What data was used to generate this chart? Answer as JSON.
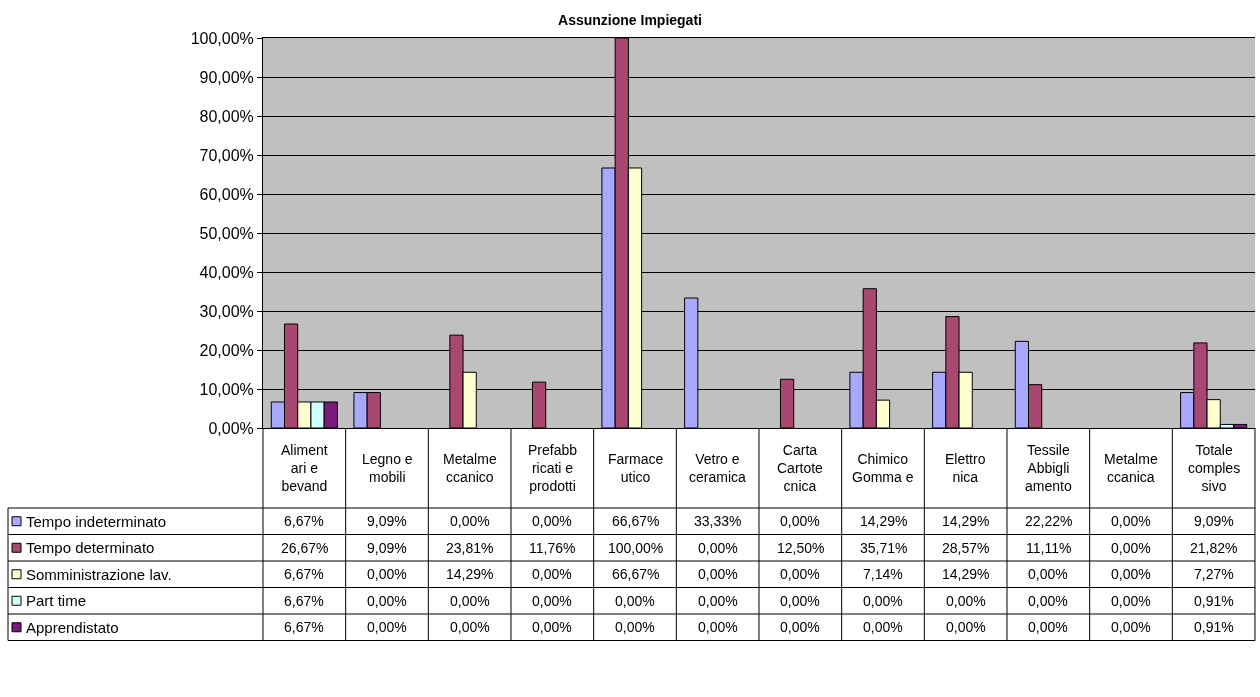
{
  "chart_data": {
    "type": "bar",
    "title": "Assunzione Impiegati",
    "categories": [
      "Alimentari e bevand",
      "Legno e mobili",
      "Metalmeccanico",
      "Prefabbricati e prodotti",
      "Farmaceutico",
      "Vetro e ceramica",
      "Carta Cartotecnica",
      "Chimico Gomma e",
      "Elettronica",
      "Tessile Abbigliamento",
      "Metalmeccanica",
      "Totale complessivo"
    ],
    "series": [
      {
        "name": "Tempo indeterminato",
        "color": "#a8a8ff",
        "values": [
          6.67,
          9.09,
          0,
          0,
          66.67,
          33.33,
          0,
          14.29,
          14.29,
          22.22,
          0,
          9.09
        ],
        "value_labels": [
          "6,67%",
          "9,09%",
          "0,00%",
          "0,00%",
          "66,67%",
          "33,33%",
          "0,00%",
          "14,29%",
          "14,29%",
          "22,22%",
          "0,00%",
          "9,09%"
        ]
      },
      {
        "name": "Tempo determinato",
        "color": "#a84870",
        "values": [
          26.67,
          9.09,
          23.81,
          11.76,
          100,
          0,
          12.5,
          35.71,
          28.57,
          11.11,
          0,
          21.82
        ],
        "value_labels": [
          "26,67%",
          "9,09%",
          "23,81%",
          "11,76%",
          "100,00%",
          "0,00%",
          "12,50%",
          "35,71%",
          "28,57%",
          "11,11%",
          "0,00%",
          "21,82%"
        ]
      },
      {
        "name": "Somministrazione lav.",
        "color": "#ffffd0",
        "values": [
          6.67,
          0,
          14.29,
          0,
          66.67,
          0,
          0,
          7.14,
          14.29,
          0,
          0,
          7.27
        ],
        "value_labels": [
          "6,67%",
          "0,00%",
          "14,29%",
          "0,00%",
          "66,67%",
          "0,00%",
          "0,00%",
          "7,14%",
          "14,29%",
          "0,00%",
          "0,00%",
          "7,27%"
        ]
      },
      {
        "name": "Part time",
        "color": "#d0ffff",
        "values": [
          6.67,
          0,
          0,
          0,
          0,
          0,
          0,
          0,
          0,
          0,
          0,
          0.91
        ],
        "value_labels": [
          "6,67%",
          "0,00%",
          "0,00%",
          "0,00%",
          "0,00%",
          "0,00%",
          "0,00%",
          "0,00%",
          "0,00%",
          "0,00%",
          "0,00%",
          "0,91%"
        ]
      },
      {
        "name": "Apprendistato",
        "color": "#7a1a7a",
        "values": [
          6.67,
          0,
          0,
          0,
          0,
          0,
          0,
          0,
          0,
          0,
          0,
          0.91
        ],
        "value_labels": [
          "6,67%",
          "0,00%",
          "0,00%",
          "0,00%",
          "0,00%",
          "0,00%",
          "0,00%",
          "0,00%",
          "0,00%",
          "0,00%",
          "0,00%",
          "0,91%"
        ]
      }
    ],
    "ylim": [
      0,
      100
    ],
    "yticks": [
      {
        "value": 0,
        "label": "0,00%"
      },
      {
        "value": 10,
        "label": "10,00%"
      },
      {
        "value": 20,
        "label": "20,00%"
      },
      {
        "value": 30,
        "label": "30,00%"
      },
      {
        "value": 40,
        "label": "40,00%"
      },
      {
        "value": 50,
        "label": "50,00%"
      },
      {
        "value": 60,
        "label": "60,00%"
      },
      {
        "value": 70,
        "label": "70,00%"
      },
      {
        "value": 80,
        "label": "80,00%"
      },
      {
        "value": 90,
        "label": "90,00%"
      },
      {
        "value": 100,
        "label": "100,00%"
      }
    ],
    "grid": "y",
    "legend": "bottom left"
  }
}
